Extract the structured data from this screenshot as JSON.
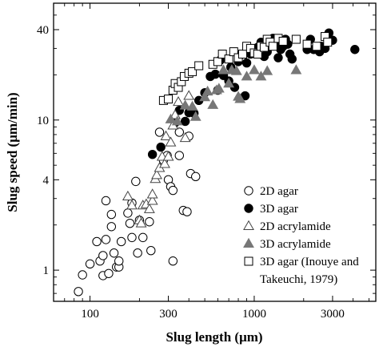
{
  "chart_data": {
    "type": "scatter",
    "xlabel": "Slug length (μm)",
    "ylabel": "Slug speed (μm/min)",
    "x_scale": "log",
    "y_scale": "log",
    "xlim": [
      60,
      5500
    ],
    "ylim": [
      0.62,
      60
    ],
    "x_ticks": [
      100,
      300,
      1000,
      3000
    ],
    "x_tick_labels": [
      "100",
      "300",
      "1000",
      "3000"
    ],
    "y_ticks": [
      1,
      4,
      10,
      40
    ],
    "y_tick_labels": [
      "1",
      "4",
      "10",
      "40"
    ],
    "grid": false,
    "legend_position": "bottom-right",
    "series": [
      {
        "name": "2D agar",
        "marker": "open-circle",
        "color": "#000000",
        "points": [
          [
            85,
            0.72
          ],
          [
            90,
            0.93
          ],
          [
            100,
            1.1
          ],
          [
            110,
            1.55
          ],
          [
            115,
            1.15
          ],
          [
            120,
            0.92
          ],
          [
            120,
            1.25
          ],
          [
            125,
            1.6
          ],
          [
            125,
            2.9
          ],
          [
            130,
            0.95
          ],
          [
            135,
            1.95
          ],
          [
            135,
            2.35
          ],
          [
            140,
            1.3
          ],
          [
            145,
            1.05
          ],
          [
            150,
            1.05
          ],
          [
            150,
            1.15
          ],
          [
            155,
            1.55
          ],
          [
            170,
            2.4
          ],
          [
            175,
            2.05
          ],
          [
            180,
            2.8
          ],
          [
            180,
            1.65
          ],
          [
            190,
            3.9
          ],
          [
            200,
            2.15
          ],
          [
            195,
            1.3
          ],
          [
            210,
            1.65
          ],
          [
            230,
            2.1
          ],
          [
            235,
            1.35
          ],
          [
            265,
            8.3
          ],
          [
            280,
            5.4
          ],
          [
            295,
            5.8
          ],
          [
            300,
            4.0
          ],
          [
            310,
            3.6
          ],
          [
            320,
            3.4
          ],
          [
            320,
            1.15
          ],
          [
            350,
            8.3
          ],
          [
            350,
            5.8
          ],
          [
            370,
            2.5
          ],
          [
            390,
            2.45
          ],
          [
            400,
            7.8
          ],
          [
            410,
            4.4
          ],
          [
            440,
            4.2
          ]
        ]
      },
      {
        "name": "3D agar",
        "marker": "filled-circle",
        "color": "#000000",
        "points": [
          [
            240,
            5.9
          ],
          [
            270,
            6.6
          ],
          [
            330,
            9.6
          ],
          [
            350,
            11.6
          ],
          [
            380,
            9.8
          ],
          [
            400,
            11.2
          ],
          [
            430,
            11.1
          ],
          [
            460,
            13.5
          ],
          [
            500,
            15.2
          ],
          [
            540,
            19.5
          ],
          [
            580,
            20.2
          ],
          [
            600,
            15.8
          ],
          [
            620,
            25
          ],
          [
            650,
            19.8
          ],
          [
            700,
            18.2
          ],
          [
            720,
            22.5
          ],
          [
            760,
            16.5
          ],
          [
            800,
            24.5
          ],
          [
            820,
            27
          ],
          [
            880,
            14.5
          ],
          [
            900,
            24
          ],
          [
            950,
            27.5
          ],
          [
            1000,
            29.5
          ],
          [
            1050,
            30.5
          ],
          [
            1100,
            33
          ],
          [
            1150,
            26.5
          ],
          [
            1200,
            28.5
          ],
          [
            1250,
            33
          ],
          [
            1300,
            35
          ],
          [
            1350,
            31.5
          ],
          [
            1400,
            26
          ],
          [
            1450,
            29.5
          ],
          [
            1500,
            31
          ],
          [
            1550,
            34.5
          ],
          [
            1600,
            32
          ],
          [
            1650,
            27.5
          ],
          [
            1700,
            25.5
          ],
          [
            2100,
            29.5
          ],
          [
            2200,
            34.5
          ],
          [
            2300,
            29.5
          ],
          [
            2500,
            28.5
          ],
          [
            2550,
            31
          ],
          [
            2700,
            30
          ],
          [
            2850,
            38
          ],
          [
            3000,
            34
          ],
          [
            4100,
            29.5
          ]
        ]
      },
      {
        "name": "2D acrylamide",
        "marker": "open-triangle",
        "color": "#000000",
        "points": [
          [
            170,
            3.1
          ],
          [
            180,
            2.7
          ],
          [
            200,
            2.15
          ],
          [
            205,
            2.05
          ],
          [
            210,
            2.7
          ],
          [
            220,
            2.75
          ],
          [
            230,
            2.55
          ],
          [
            240,
            2.9
          ],
          [
            240,
            3.2
          ],
          [
            250,
            4.05
          ],
          [
            255,
            4.3
          ],
          [
            265,
            4.8
          ],
          [
            275,
            5.7
          ],
          [
            285,
            5.1
          ],
          [
            290,
            7.8
          ],
          [
            300,
            5.7
          ],
          [
            310,
            7.1
          ],
          [
            320,
            9.2
          ],
          [
            330,
            10.8
          ],
          [
            345,
            13.2
          ],
          [
            380,
            7.6
          ],
          [
            400,
            14.5
          ]
        ]
      },
      {
        "name": "3D acrylamide",
        "marker": "filled-triangle",
        "color": "#777777",
        "points": [
          [
            310,
            10.1
          ],
          [
            340,
            9.8
          ],
          [
            380,
            12.5
          ],
          [
            420,
            12.3
          ],
          [
            440,
            10.5
          ],
          [
            500,
            14.2
          ],
          [
            520,
            15.5
          ],
          [
            560,
            12.6
          ],
          [
            590,
            15.8
          ],
          [
            610,
            16.2
          ],
          [
            650,
            21.5
          ],
          [
            700,
            17.5
          ],
          [
            730,
            21.5
          ],
          [
            780,
            21.2
          ],
          [
            800,
            14.3
          ],
          [
            820,
            13.8
          ],
          [
            900,
            19.5
          ],
          [
            1000,
            21.5
          ],
          [
            1100,
            19.5
          ],
          [
            1200,
            21.2
          ],
          [
            1800,
            21.5
          ]
        ]
      },
      {
        "name": "3D agar (Inouye and Takeuchi, 1979)",
        "marker": "open-square",
        "color": "#000000",
        "points": [
          [
            280,
            13.5
          ],
          [
            300,
            13.8
          ],
          [
            320,
            15.8
          ],
          [
            330,
            17.5
          ],
          [
            345,
            16.5
          ],
          [
            360,
            18
          ],
          [
            375,
            19.5
          ],
          [
            400,
            20.5
          ],
          [
            420,
            21
          ],
          [
            460,
            23
          ],
          [
            560,
            23.5
          ],
          [
            600,
            24.5
          ],
          [
            640,
            27.5
          ],
          [
            700,
            25.5
          ],
          [
            750,
            28.5
          ],
          [
            800,
            26
          ],
          [
            850,
            27.5
          ],
          [
            900,
            31
          ],
          [
            950,
            30
          ],
          [
            1000,
            28
          ],
          [
            1050,
            27.5
          ],
          [
            1100,
            31
          ],
          [
            1150,
            30.5
          ],
          [
            1200,
            34.5
          ],
          [
            1250,
            33
          ],
          [
            1300,
            31
          ],
          [
            1400,
            35
          ],
          [
            1500,
            33.5
          ],
          [
            1800,
            34.5
          ],
          [
            2100,
            32
          ],
          [
            2400,
            31
          ],
          [
            2700,
            36
          ],
          [
            2800,
            33
          ]
        ]
      }
    ]
  }
}
